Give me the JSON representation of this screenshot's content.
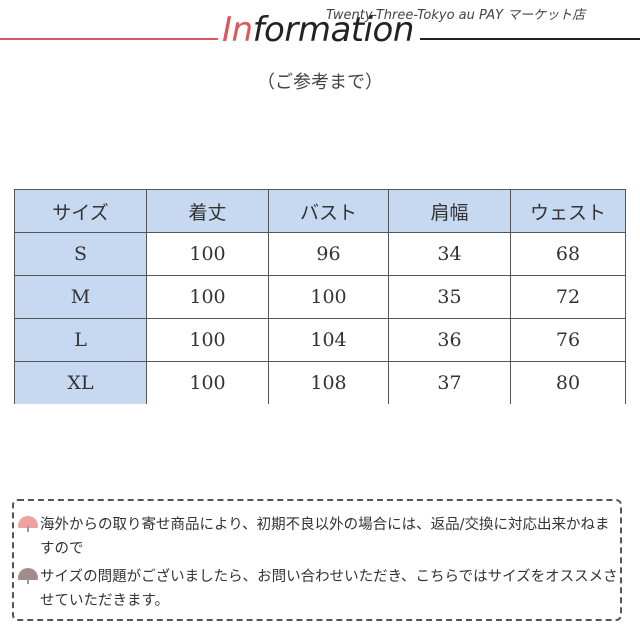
{
  "header": {
    "title_accent": "In",
    "title_rest": "formation",
    "shop_name": "Twenty-Three-Tokyo au PAY マーケット店",
    "subtitle": "（ご参考まで）",
    "colors": {
      "accent": "#d9575f",
      "header_cell": "#c6d9f0"
    }
  },
  "table": {
    "headers": [
      "サイズ",
      "着丈",
      "バスト",
      "肩幅",
      "ウェスト"
    ],
    "rows": [
      [
        "S",
        "100",
        "96",
        "34",
        "68"
      ],
      [
        "M",
        "100",
        "100",
        "35",
        "72"
      ],
      [
        "L",
        "100",
        "104",
        "36",
        "76"
      ],
      [
        "XL",
        "100",
        "108",
        "37",
        "80"
      ]
    ]
  },
  "notes": [
    {
      "icon": "fan-icon",
      "color": "#f0a0a0",
      "text": "海外からの取り寄せ商品により、初期不良以外の場合には、返品/交換に対応出来かねますので"
    },
    {
      "icon": "fan-icon",
      "color": "#a08c8c",
      "text": "サイズの問題がございましたら、お問い合わせいただき、こちらではサイズをオススメさせていただきます。"
    }
  ]
}
